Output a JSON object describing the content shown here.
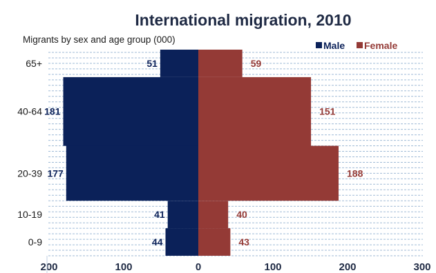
{
  "chart_data": {
    "type": "bar",
    "orientation": "horizontal",
    "layout": "population-pyramid",
    "title": "International migration, 2010",
    "subtitle": "Migrants by sex and age group (000)",
    "categories": [
      "0-9",
      "10-19",
      "20-39",
      "40-64",
      "65+"
    ],
    "series": [
      {
        "name": "Male",
        "values": [
          44,
          41,
          177,
          181,
          51
        ],
        "color": "#0b2159",
        "direction": "left"
      },
      {
        "name": "Female",
        "values": [
          43,
          40,
          188,
          151,
          59
        ],
        "color": "#943a36",
        "direction": "right"
      }
    ],
    "age_group_spans_years": [
      10,
      10,
      20,
      25,
      10
    ],
    "x_ticks": [
      "200",
      "100",
      "0",
      "100",
      "200",
      "300"
    ],
    "xlim_left": [
      200,
      0
    ],
    "xlim_right": [
      0,
      300
    ],
    "legend": {
      "position": "top-right"
    },
    "grid": {
      "horizontal": true,
      "style": "dashed"
    }
  }
}
